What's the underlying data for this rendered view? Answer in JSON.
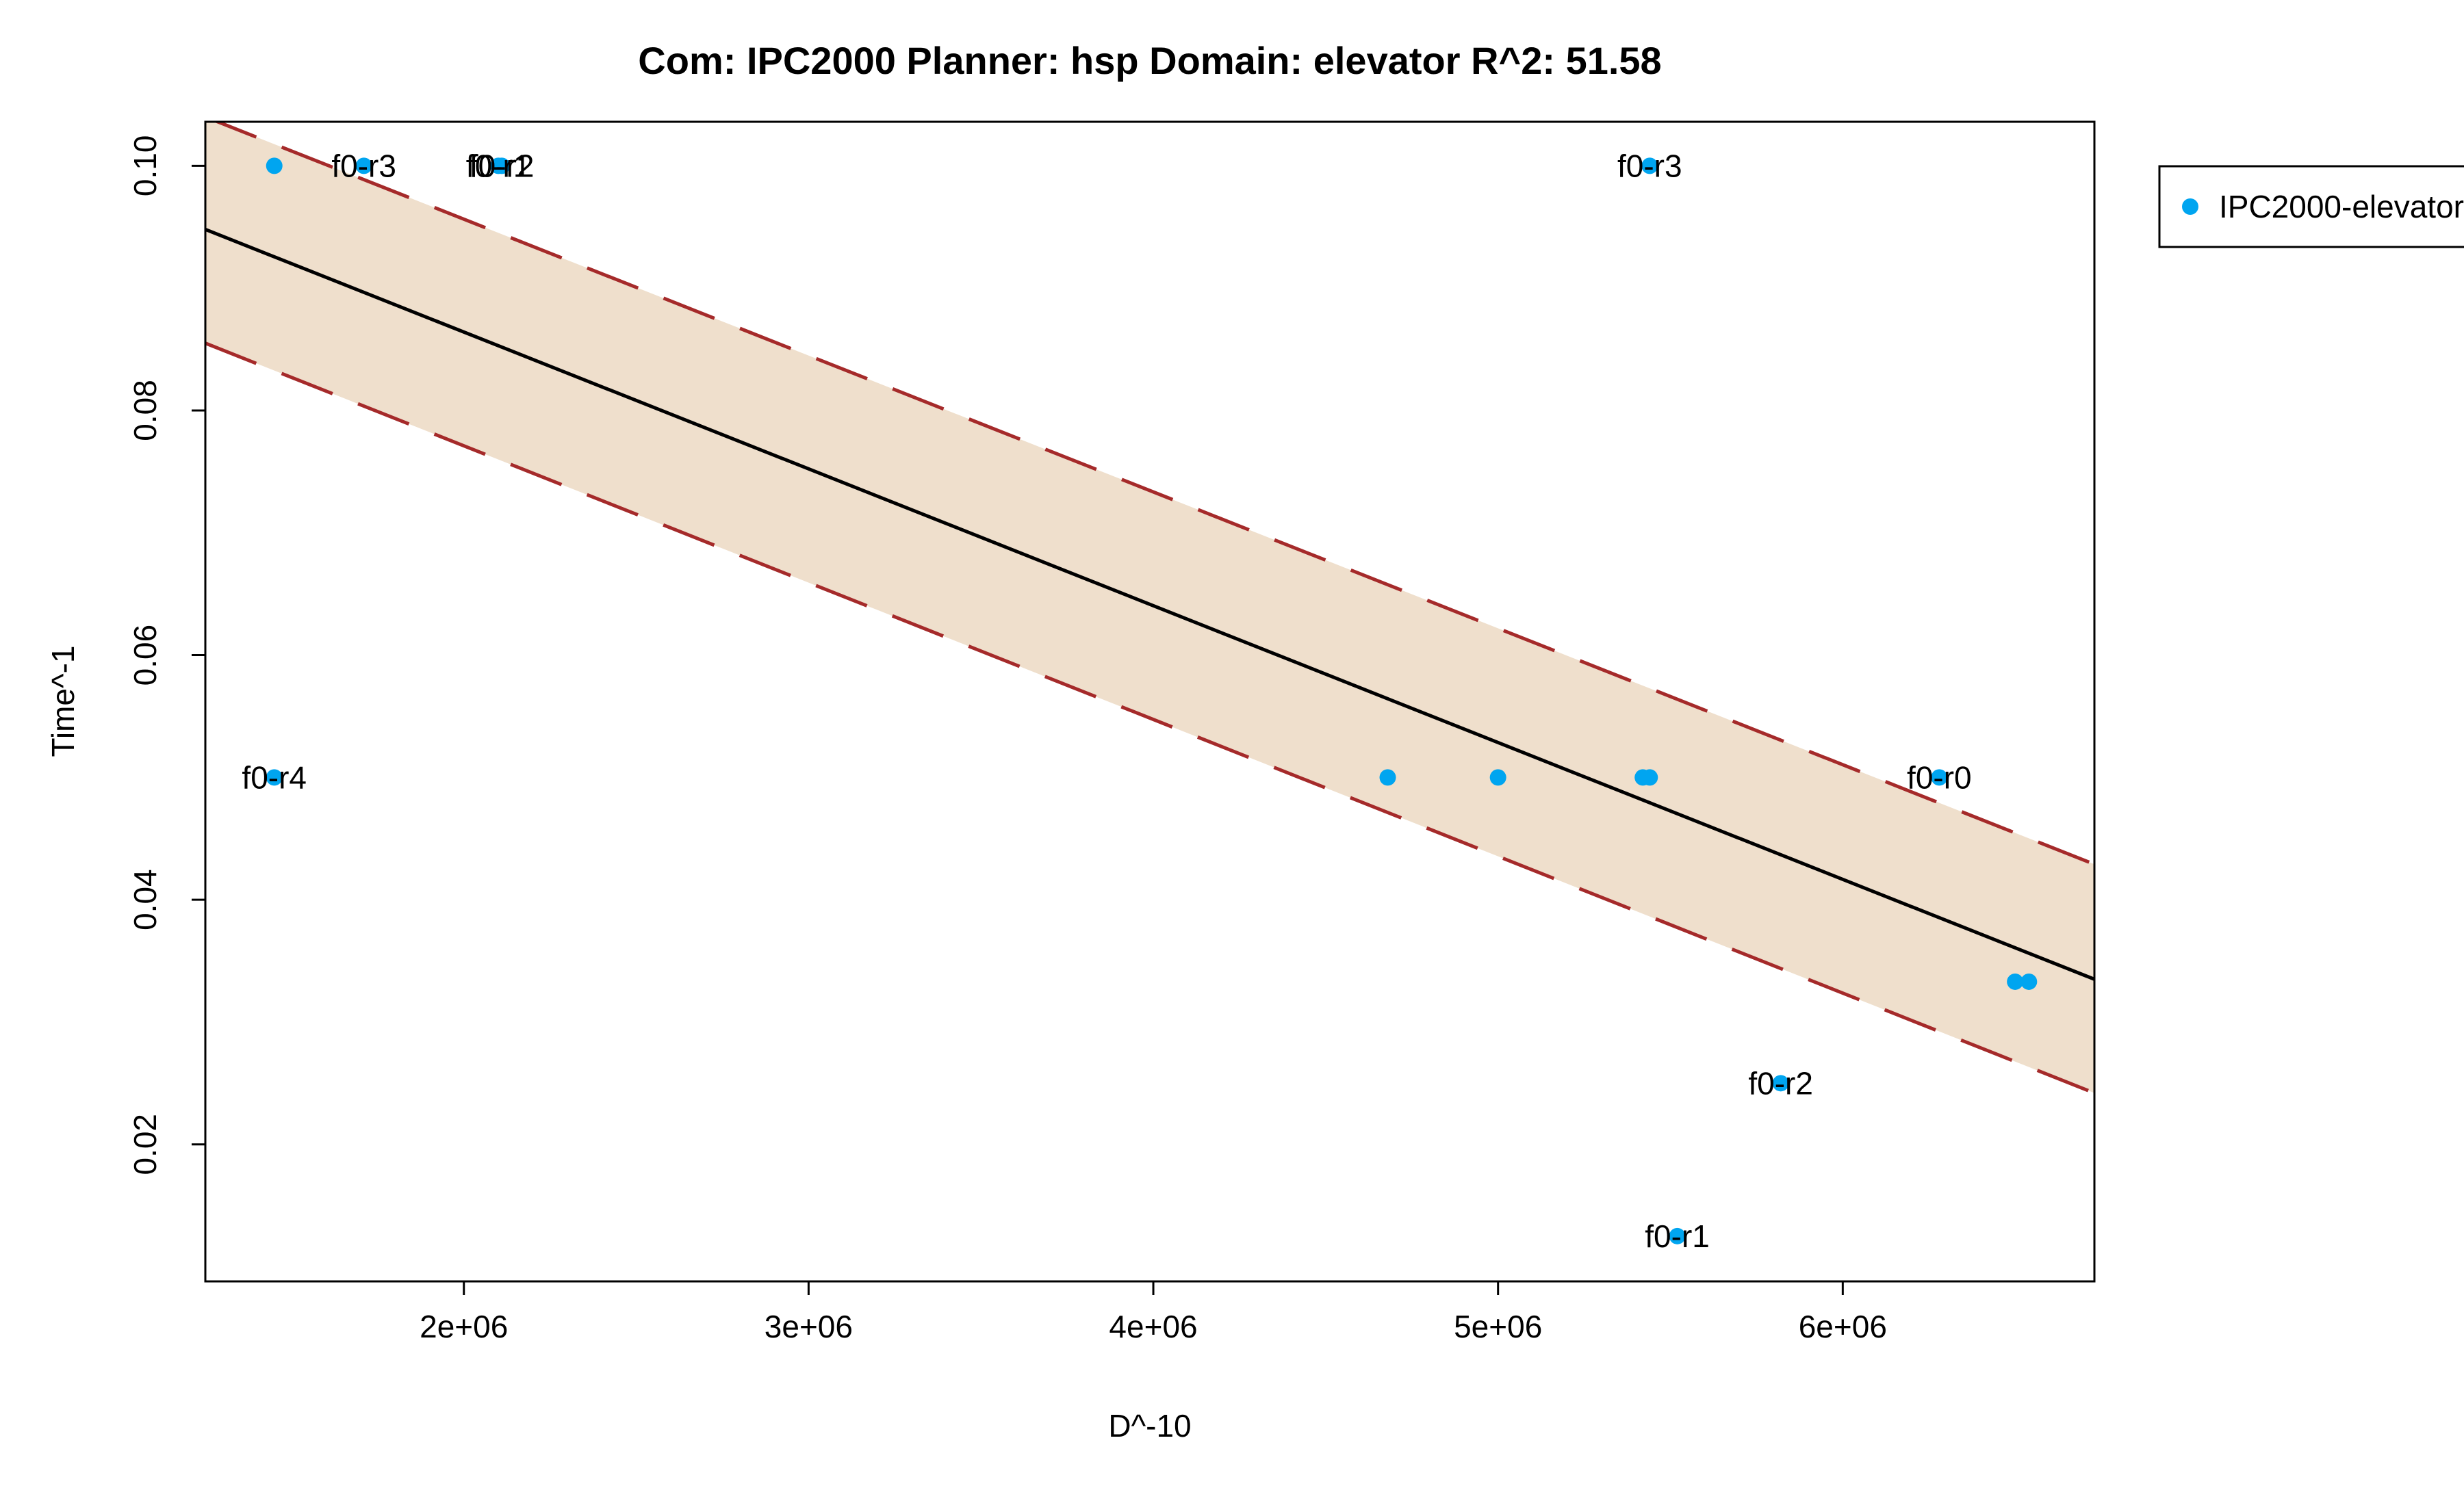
{
  "chart_data": {
    "type": "scatter",
    "title": "Com: IPC2000 Planner: hsp Domain: elevator R^2: 51.58",
    "xlabel": "D^-10",
    "ylabel": "Time^-1",
    "xlim": [
      1250000,
      6730000
    ],
    "ylim": [
      0.0088,
      0.1036
    ],
    "x_ticks": [
      2000000,
      3000000,
      4000000,
      5000000,
      6000000
    ],
    "x_tick_labels": [
      "2e+06",
      "3e+06",
      "4e+06",
      "5e+06",
      "6e+06"
    ],
    "y_ticks": [
      0.02,
      0.04,
      0.06,
      0.08,
      0.1
    ],
    "y_tick_labels": [
      "0.02",
      "0.04",
      "0.06",
      "0.08",
      "0.10"
    ],
    "grid": false,
    "legend": {
      "position": "top-right-outside",
      "entries": [
        {
          "label": "IPC2000-elevator",
          "color": "#00a5f0"
        }
      ]
    },
    "series": [
      {
        "name": "IPC2000-elevator",
        "color": "#00a5f0",
        "points": [
          {
            "x": 1450000,
            "y": 0.1,
            "label": ""
          },
          {
            "x": 1710000,
            "y": 0.1,
            "label": "f0-r3"
          },
          {
            "x": 2100000,
            "y": 0.1,
            "label": "f0-r1"
          },
          {
            "x": 2110000,
            "y": 0.1,
            "label": "f0-r2"
          },
          {
            "x": 5440000,
            "y": 0.1,
            "label": "f0-r3"
          },
          {
            "x": 1450000,
            "y": 0.05,
            "label": "f0-r4"
          },
          {
            "x": 4680000,
            "y": 0.05,
            "label": ""
          },
          {
            "x": 5000000,
            "y": 0.05,
            "label": ""
          },
          {
            "x": 5420000,
            "y": 0.05,
            "label": ""
          },
          {
            "x": 5440000,
            "y": 0.05,
            "label": ""
          },
          {
            "x": 6280000,
            "y": 0.05,
            "label": "f0-r0"
          },
          {
            "x": 6500000,
            "y": 0.0333,
            "label": ""
          },
          {
            "x": 6540000,
            "y": 0.0333,
            "label": ""
          },
          {
            "x": 5820000,
            "y": 0.025,
            "label": "f0-r2"
          },
          {
            "x": 5520000,
            "y": 0.0125,
            "label": "f0-r1"
          }
        ]
      }
    ],
    "regression": {
      "fit": {
        "x": [
          1250000,
          6730000
        ],
        "y": [
          0.0948,
          0.0335
        ],
        "color": "#000000"
      },
      "upper": {
        "x": [
          1250000,
          6730000
        ],
        "y": [
          0.104,
          0.0429
        ],
        "color": "#a52a2a"
      },
      "lower": {
        "x": [
          1250000,
          6730000
        ],
        "y": [
          0.0855,
          0.0242
        ],
        "color": "#a52a2a"
      },
      "band_color": "#efdfcc"
    }
  }
}
